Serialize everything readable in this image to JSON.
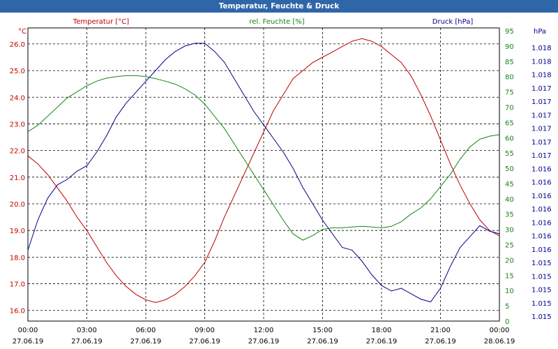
{
  "window": {
    "title": "Temperatur, Feuchte & Druck"
  },
  "colors": {
    "temperature": "#c00000",
    "humidity": "#138613",
    "pressure": "#00008b",
    "grid": "#000000"
  },
  "chart_data": {
    "type": "line",
    "title": "Temperatur, Feuchte & Druck",
    "x_ticks": [
      {
        "time": "00:00",
        "date": "27.06.19"
      },
      {
        "time": "03:00",
        "date": "27.06.19"
      },
      {
        "time": "06:00",
        "date": "27.06.19"
      },
      {
        "time": "09:00",
        "date": "27.06.19"
      },
      {
        "time": "12:00",
        "date": "27.06.19"
      },
      {
        "time": "15:00",
        "date": "27.06.19"
      },
      {
        "time": "18:00",
        "date": "27.06.19"
      },
      {
        "time": "21:00",
        "date": "27.06.19"
      },
      {
        "time": "00:00",
        "date": "28.06.19"
      }
    ],
    "xlim_hours": [
      0,
      24
    ],
    "axes": {
      "temperature": {
        "unit": "°C",
        "legend": "Temperatur [°C]",
        "ylim": [
          15.6,
          26.6
        ],
        "ticks": [
          16.0,
          17.0,
          18.0,
          19.0,
          20.0,
          21.0,
          22.0,
          23.0,
          24.0,
          25.0,
          26.0
        ],
        "tick_labels": [
          "16.0",
          "17.0",
          "18.0",
          "19.0",
          "20.0",
          "21.0",
          "22.0",
          "23.0",
          "24.0",
          "25.0",
          "26.0"
        ]
      },
      "humidity": {
        "unit": "%",
        "legend": "rel. Feuchte [%]",
        "ylim": [
          0,
          95
        ],
        "ticks": [
          0,
          5,
          10,
          15,
          20,
          25,
          30,
          35,
          40,
          45,
          50,
          55,
          60,
          65,
          70,
          75,
          80,
          85,
          90,
          95
        ],
        "tick_labels": [
          "0",
          "5",
          "10",
          "15",
          "20",
          "25",
          "30",
          "35",
          "40",
          "45",
          "50",
          "55",
          "60",
          "65",
          "70",
          "75",
          "80",
          "85",
          "90",
          "95"
        ]
      },
      "pressure": {
        "unit": "hPa",
        "legend": "Druck [hPa]",
        "tick_labels": [
          "1.015",
          "1.015",
          "1.015",
          "1.015",
          "1.015",
          "1.016",
          "1.016",
          "1.016",
          "1.016",
          "1.016",
          "1.016",
          "1.016",
          "1.017",
          "1.017",
          "1.017",
          "1.017",
          "1.017",
          "1.017",
          "1.018",
          "1.018",
          "1.018"
        ],
        "series_range": [
          0,
          1
        ]
      }
    },
    "series": [
      {
        "name": "Temperatur [°C]",
        "axis": "temperature",
        "points": [
          [
            0,
            21.8
          ],
          [
            0.5,
            21.5
          ],
          [
            1,
            21.1
          ],
          [
            1.5,
            20.6
          ],
          [
            2,
            20.1
          ],
          [
            2.5,
            19.5
          ],
          [
            3,
            19.0
          ],
          [
            3.5,
            18.4
          ],
          [
            4,
            17.8
          ],
          [
            4.5,
            17.3
          ],
          [
            5,
            16.9
          ],
          [
            5.5,
            16.6
          ],
          [
            6,
            16.4
          ],
          [
            6.5,
            16.3
          ],
          [
            7,
            16.4
          ],
          [
            7.5,
            16.6
          ],
          [
            8,
            16.9
          ],
          [
            8.5,
            17.3
          ],
          [
            9,
            17.8
          ],
          [
            9.5,
            18.6
          ],
          [
            10,
            19.5
          ],
          [
            10.5,
            20.3
          ],
          [
            11,
            21.1
          ],
          [
            11.5,
            21.9
          ],
          [
            12,
            22.7
          ],
          [
            12.5,
            23.5
          ],
          [
            13,
            24.1
          ],
          [
            13.5,
            24.7
          ],
          [
            14,
            25.0
          ],
          [
            14.5,
            25.3
          ],
          [
            15,
            25.5
          ],
          [
            15.5,
            25.7
          ],
          [
            16,
            25.9
          ],
          [
            16.5,
            26.1
          ],
          [
            17,
            26.2
          ],
          [
            17.5,
            26.1
          ],
          [
            18,
            25.9
          ],
          [
            18.5,
            25.6
          ],
          [
            19,
            25.3
          ],
          [
            19.5,
            24.8
          ],
          [
            20,
            24.1
          ],
          [
            20.5,
            23.3
          ],
          [
            21,
            22.4
          ],
          [
            21.5,
            21.5
          ],
          [
            22,
            20.7
          ],
          [
            22.5,
            20.0
          ],
          [
            23,
            19.4
          ],
          [
            23.5,
            19.0
          ],
          [
            24,
            18.8
          ]
        ]
      },
      {
        "name": "rel. Feuchte [%]",
        "axis": "humidity",
        "points": [
          [
            0,
            62
          ],
          [
            0.5,
            64
          ],
          [
            1,
            67
          ],
          [
            1.5,
            70
          ],
          [
            2,
            73
          ],
          [
            2.5,
            75
          ],
          [
            3,
            77
          ],
          [
            3.5,
            78.5
          ],
          [
            4,
            79.5
          ],
          [
            4.5,
            80
          ],
          [
            5,
            80.3
          ],
          [
            5.5,
            80.3
          ],
          [
            6,
            80
          ],
          [
            6.5,
            79.3
          ],
          [
            7,
            78.5
          ],
          [
            7.5,
            77.5
          ],
          [
            8,
            76
          ],
          [
            8.5,
            74
          ],
          [
            9,
            71
          ],
          [
            9.5,
            67
          ],
          [
            10,
            63
          ],
          [
            10.5,
            58
          ],
          [
            11,
            53
          ],
          [
            11.5,
            48
          ],
          [
            12,
            43
          ],
          [
            12.5,
            38
          ],
          [
            13,
            33
          ],
          [
            13.5,
            28.5
          ],
          [
            14,
            26.5
          ],
          [
            14.5,
            28
          ],
          [
            15,
            30
          ],
          [
            15.5,
            30.5
          ],
          [
            16,
            30.5
          ],
          [
            16.5,
            30.8
          ],
          [
            17,
            31
          ],
          [
            17.5,
            30.8
          ],
          [
            18,
            30.5
          ],
          [
            18.5,
            31
          ],
          [
            19,
            32.5
          ],
          [
            19.5,
            35
          ],
          [
            20,
            37
          ],
          [
            20.5,
            40
          ],
          [
            21,
            44
          ],
          [
            21.5,
            48
          ],
          [
            22,
            53
          ],
          [
            22.5,
            57
          ],
          [
            23,
            59.5
          ],
          [
            23.5,
            60.5
          ],
          [
            24,
            61
          ]
        ]
      },
      {
        "name": "Druck [hPa]",
        "axis": "pressure",
        "points": [
          [
            0,
            0.24
          ],
          [
            0.5,
            0.35
          ],
          [
            1,
            0.43
          ],
          [
            1.5,
            0.48
          ],
          [
            2,
            0.5
          ],
          [
            2.5,
            0.53
          ],
          [
            3,
            0.55
          ],
          [
            3.5,
            0.6
          ],
          [
            4,
            0.66
          ],
          [
            4.5,
            0.73
          ],
          [
            5,
            0.78
          ],
          [
            5.5,
            0.82
          ],
          [
            6,
            0.86
          ],
          [
            6.5,
            0.9
          ],
          [
            7,
            0.94
          ],
          [
            7.5,
            0.97
          ],
          [
            8,
            0.99
          ],
          [
            8.5,
            1.0
          ],
          [
            9,
            1.0
          ],
          [
            9.5,
            0.97
          ],
          [
            10,
            0.93
          ],
          [
            10.5,
            0.87
          ],
          [
            11,
            0.81
          ],
          [
            11.5,
            0.75
          ],
          [
            12,
            0.7
          ],
          [
            12.5,
            0.65
          ],
          [
            13,
            0.6
          ],
          [
            13.5,
            0.54
          ],
          [
            14,
            0.47
          ],
          [
            14.5,
            0.41
          ],
          [
            15,
            0.35
          ],
          [
            15.5,
            0.3
          ],
          [
            16,
            0.25
          ],
          [
            16.5,
            0.24
          ],
          [
            17,
            0.2
          ],
          [
            17.5,
            0.15
          ],
          [
            18,
            0.11
          ],
          [
            18.5,
            0.09
          ],
          [
            19,
            0.1
          ],
          [
            19.5,
            0.08
          ],
          [
            20,
            0.06
          ],
          [
            20.5,
            0.05
          ],
          [
            21,
            0.1
          ],
          [
            21.5,
            0.18
          ],
          [
            22,
            0.25
          ],
          [
            22.5,
            0.29
          ],
          [
            23,
            0.33
          ],
          [
            23.5,
            0.31
          ],
          [
            24,
            0.3
          ]
        ]
      }
    ]
  }
}
